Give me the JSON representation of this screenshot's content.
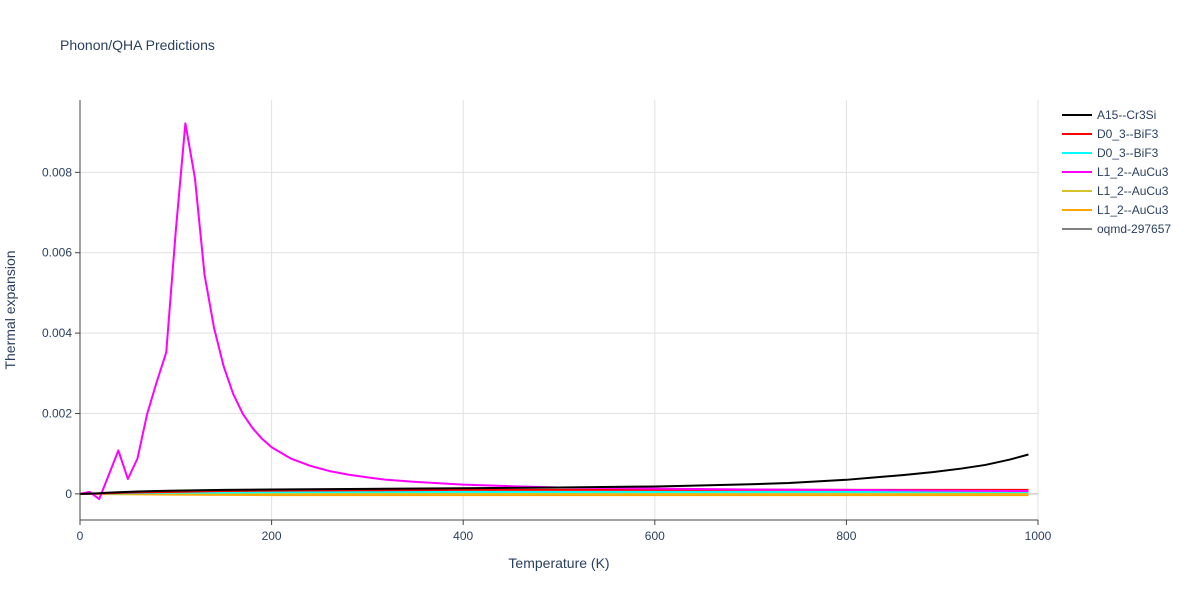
{
  "chart_data": {
    "type": "line",
    "title": "Phonon/QHA Predictions",
    "xlabel": "Temperature (K)",
    "ylabel": "Thermal expansion",
    "xlim": [
      0,
      1000
    ],
    "ylim": [
      -0.00065,
      0.0098
    ],
    "x_ticks": [
      0,
      200,
      400,
      600,
      800,
      1000
    ],
    "x_tick_labels": [
      "0",
      "200",
      "400",
      "600",
      "800",
      "1000"
    ],
    "y_ticks": [
      0,
      0.002,
      0.004,
      0.006,
      0.008
    ],
    "y_tick_labels": [
      "0",
      "0.002",
      "0.004",
      "0.006",
      "0.008"
    ],
    "grid": true,
    "legend_position": "top-right",
    "series": [
      {
        "name": "A15--Cr3Si",
        "color": "#000000",
        "x": [
          0,
          10,
          20,
          30,
          40,
          50,
          60,
          80,
          100,
          150,
          200,
          300,
          400,
          500,
          600,
          630,
          700,
          740,
          800,
          830,
          860,
          890,
          920,
          945,
          970,
          990
        ],
        "y": [
          0,
          5e-06,
          1.5e-05,
          3e-05,
          4e-05,
          5e-05,
          6e-05,
          7e-05,
          8e-05,
          0.0001,
          0.00011,
          0.000125,
          0.00014,
          0.00016,
          0.000185,
          0.0002,
          0.00024,
          0.00027,
          0.00035,
          0.00041,
          0.00047,
          0.00054,
          0.00063,
          0.00072,
          0.00085,
          0.00098
        ]
      },
      {
        "name": "D0_3--BiF3",
        "color": "#ff0000",
        "x": [
          0,
          20,
          50,
          100,
          150,
          200,
          300,
          400,
          500,
          600,
          700,
          800,
          900,
          990
        ],
        "y": [
          0,
          1e-05,
          3e-05,
          5e-05,
          7e-05,
          8e-05,
          9e-05,
          0.0001,
          0.0001,
          0.0001,
          0.0001,
          0.0001,
          0.0001,
          0.0001
        ]
      },
      {
        "name": "D0_3--BiF3",
        "color": "#00ffff",
        "x": [
          0,
          20,
          50,
          100,
          200,
          300,
          400,
          500,
          600,
          700,
          800,
          900,
          990
        ],
        "y": [
          0,
          1e-05,
          2e-05,
          3e-05,
          4e-05,
          5e-05,
          5e-05,
          5e-05,
          5e-05,
          5e-05,
          5e-05,
          5e-05,
          5e-05
        ]
      },
      {
        "name": "L1_2--AuCu3",
        "color": "#ff00ff",
        "x": [
          0,
          10,
          20,
          30,
          40,
          50,
          60,
          70,
          80,
          90,
          100,
          110,
          120,
          130,
          140,
          150,
          160,
          170,
          180,
          190,
          200,
          220,
          240,
          260,
          280,
          300,
          320,
          350,
          400,
          450,
          500,
          600,
          700,
          800,
          900,
          990
        ],
        "y": [
          0,
          5e-05,
          -0.00013,
          0.00047,
          0.00108,
          0.00037,
          0.00088,
          0.00198,
          0.00278,
          0.00352,
          0.00655,
          0.00922,
          0.00785,
          0.00545,
          0.00412,
          0.00317,
          0.00248,
          0.00199,
          0.00164,
          0.00137,
          0.00116,
          0.00088,
          0.0007,
          0.00057,
          0.00048,
          0.00041,
          0.00035,
          0.0003,
          0.00023,
          0.00019,
          0.00016,
          0.00013,
          0.00011,
          0.0001,
          8e-05,
          7e-05
        ]
      },
      {
        "name": "L1_2--AuCu3",
        "color": "#d4c22a",
        "x": [
          0,
          50,
          100,
          200,
          300,
          400,
          500,
          600,
          700,
          800,
          900,
          990
        ],
        "y": [
          0,
          5e-06,
          1e-05,
          2e-05,
          2e-05,
          2e-05,
          2e-05,
          2e-05,
          2e-05,
          2e-05,
          2e-05,
          2e-05
        ]
      },
      {
        "name": "L1_2--AuCu3",
        "color": "#ffa500",
        "x": [
          0,
          50,
          100,
          200,
          300,
          400,
          500,
          600,
          700,
          800,
          900,
          990
        ],
        "y": [
          0,
          -1e-05,
          -2e-05,
          -3e-05,
          -3e-05,
          -3e-05,
          -3e-05,
          -3e-05,
          -3e-05,
          -3e-05,
          -3e-05,
          -3e-05
        ]
      },
      {
        "name": "oqmd-297657",
        "color": "#808080",
        "x": [
          0,
          50,
          100,
          200,
          300,
          400,
          500,
          600,
          700,
          800,
          900,
          990
        ],
        "y": [
          0,
          1e-05,
          2e-05,
          3e-05,
          3e-05,
          3e-05,
          3e-05,
          3e-05,
          3e-05,
          3e-05,
          3e-05,
          3e-05
        ]
      }
    ]
  }
}
